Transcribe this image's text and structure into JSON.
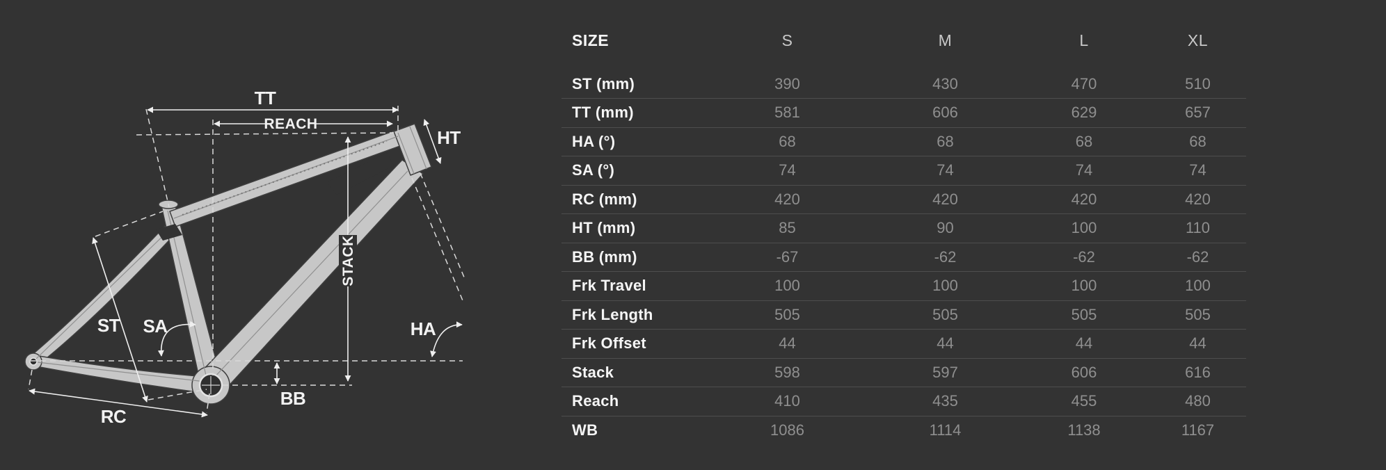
{
  "table": {
    "header": {
      "label": "SIZE",
      "columns": [
        "S",
        "M",
        "L",
        "XL"
      ]
    },
    "rows": [
      {
        "label": "ST (mm)",
        "values": [
          "390",
          "430",
          "470",
          "510"
        ]
      },
      {
        "label": "TT (mm)",
        "values": [
          "581",
          "606",
          "629",
          "657"
        ]
      },
      {
        "label": "HA (°)",
        "values": [
          "68",
          "68",
          "68",
          "68"
        ]
      },
      {
        "label": "SA (°)",
        "values": [
          "74",
          "74",
          "74",
          "74"
        ]
      },
      {
        "label": "RC (mm)",
        "values": [
          "420",
          "420",
          "420",
          "420"
        ]
      },
      {
        "label": "HT (mm)",
        "values": [
          "85",
          "90",
          "100",
          "110"
        ]
      },
      {
        "label": "BB (mm)",
        "values": [
          "-67",
          "-62",
          "-62",
          "-62"
        ]
      },
      {
        "label": "Frk Travel",
        "values": [
          "100",
          "100",
          "100",
          "100"
        ]
      },
      {
        "label": "Frk Length",
        "values": [
          "505",
          "505",
          "505",
          "505"
        ]
      },
      {
        "label": "Frk Offset",
        "values": [
          "44",
          "44",
          "44",
          "44"
        ]
      },
      {
        "label": "Stack",
        "values": [
          "598",
          "597",
          "606",
          "616"
        ]
      },
      {
        "label": "Reach",
        "values": [
          "410",
          "435",
          "455",
          "480"
        ]
      },
      {
        "label": "WB",
        "values": [
          "1086",
          "1114",
          "1138",
          "1167"
        ]
      }
    ]
  },
  "diagram": {
    "labels": {
      "tt": "TT",
      "reach": "REACH",
      "ht": "HT",
      "stack": "STACK",
      "st": "ST",
      "sa": "SA",
      "ha": "HA",
      "bb": "BB",
      "rc": "RC"
    }
  },
  "colors": {
    "background": "#333333",
    "row_divider": "#4e4e4e",
    "label_text": "#f5f5f5",
    "value_text": "#8f8f8f",
    "column_header_text": "#c9c9c9",
    "frame_fill": "#c7c7c7",
    "dimension_lines": "#efefef"
  }
}
